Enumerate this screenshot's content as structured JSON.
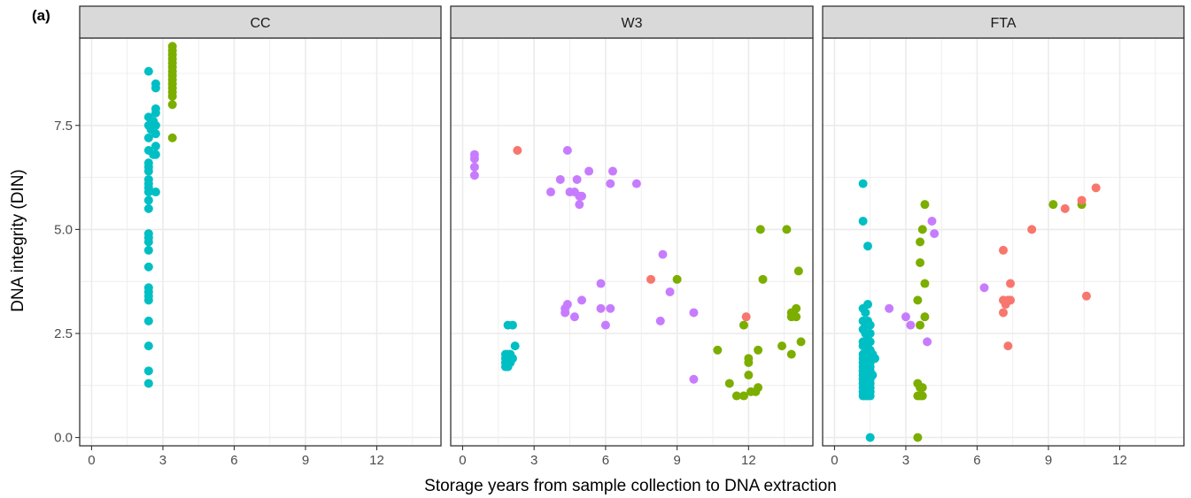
{
  "figure": {
    "panel_label": "(a)",
    "xlabel": "Storage years from sample collection to DNA extraction",
    "ylabel": "DNA integrity (DIN)"
  },
  "colors": {
    "strip_bg": "#d9d9d9",
    "grid": "#ebebeb",
    "axis_text": "#4d4d4d",
    "teal": "#00bfc4",
    "green": "#7cae00",
    "purple": "#c77cff",
    "red": "#f8766d"
  },
  "chart_data": [
    {
      "type": "scatter",
      "facet": "CC",
      "xlim": [
        -0.5,
        14.7
      ],
      "ylim": [
        -0.2,
        9.6
      ],
      "x_ticks": [
        "0",
        "3",
        "6",
        "9",
        "12"
      ],
      "y_ticks": [
        "0.0",
        "2.5",
        "5.0",
        "7.5"
      ],
      "grid": true,
      "series": [
        {
          "color": "teal",
          "points": [
            [
              2.4,
              8.8
            ],
            [
              2.4,
              7.7
            ],
            [
              2.6,
              7.6
            ],
            [
              2.4,
              7.5
            ],
            [
              2.7,
              7.5
            ],
            [
              2.5,
              7.4
            ],
            [
              2.7,
              7.3
            ],
            [
              2.4,
              7.2
            ],
            [
              2.7,
              7.0
            ],
            [
              2.4,
              6.9
            ],
            [
              2.6,
              6.8
            ],
            [
              2.7,
              6.8
            ],
            [
              2.4,
              6.6
            ],
            [
              2.4,
              6.5
            ],
            [
              2.4,
              6.4
            ],
            [
              2.4,
              6.2
            ],
            [
              2.4,
              6.1
            ],
            [
              2.4,
              6.0
            ],
            [
              2.4,
              5.9
            ],
            [
              2.7,
              5.9
            ],
            [
              2.4,
              5.7
            ],
            [
              2.4,
              5.5
            ],
            [
              2.4,
              4.9
            ],
            [
              2.4,
              4.8
            ],
            [
              2.4,
              4.7
            ],
            [
              2.4,
              4.5
            ],
            [
              2.4,
              4.1
            ],
            [
              2.4,
              3.6
            ],
            [
              2.4,
              3.5
            ],
            [
              2.4,
              3.4
            ],
            [
              2.4,
              3.3
            ],
            [
              2.4,
              2.8
            ],
            [
              2.4,
              2.2
            ],
            [
              2.4,
              1.6
            ],
            [
              2.4,
              1.3
            ],
            [
              2.7,
              8.4
            ],
            [
              2.7,
              8.5
            ],
            [
              2.7,
              7.9
            ],
            [
              2.7,
              7.8
            ]
          ]
        },
        {
          "color": "green",
          "points": [
            [
              3.4,
              9.4
            ],
            [
              3.4,
              9.3
            ],
            [
              3.4,
              9.2
            ],
            [
              3.4,
              9.1
            ],
            [
              3.4,
              9.0
            ],
            [
              3.4,
              8.9
            ],
            [
              3.4,
              8.8
            ],
            [
              3.4,
              8.7
            ],
            [
              3.4,
              8.6
            ],
            [
              3.4,
              8.5
            ],
            [
              3.4,
              8.4
            ],
            [
              3.4,
              8.3
            ],
            [
              3.4,
              8.2
            ],
            [
              3.4,
              8.0
            ],
            [
              3.4,
              7.2
            ]
          ]
        }
      ]
    },
    {
      "type": "scatter",
      "facet": "W3",
      "xlim": [
        -0.5,
        14.7
      ],
      "ylim": [
        -0.2,
        9.6
      ],
      "x_ticks": [
        "0",
        "3",
        "6",
        "9",
        "12"
      ],
      "y_ticks": [
        "0.0",
        "2.5",
        "5.0",
        "7.5"
      ],
      "grid": true,
      "series": [
        {
          "color": "purple",
          "points": [
            [
              0.5,
              6.8
            ],
            [
              0.5,
              6.7
            ],
            [
              0.5,
              6.5
            ],
            [
              0.5,
              6.3
            ],
            [
              3.7,
              5.9
            ],
            [
              4.1,
              6.2
            ],
            [
              4.4,
              6.9
            ],
            [
              4.5,
              5.9
            ],
            [
              4.7,
              5.9
            ],
            [
              4.8,
              6.2
            ],
            [
              4.9,
              5.8
            ],
            [
              5.0,
              5.8
            ],
            [
              4.9,
              5.6
            ],
            [
              5.3,
              6.4
            ],
            [
              6.2,
              6.1
            ],
            [
              6.3,
              6.4
            ],
            [
              7.3,
              6.1
            ],
            [
              8.4,
              4.4
            ],
            [
              4.3,
              3.1
            ],
            [
              4.3,
              3.0
            ],
            [
              4.4,
              3.2
            ],
            [
              4.7,
              2.9
            ],
            [
              5.0,
              3.3
            ],
            [
              5.8,
              3.7
            ],
            [
              5.8,
              3.1
            ],
            [
              6.2,
              3.1
            ],
            [
              6.0,
              2.7
            ],
            [
              8.3,
              2.8
            ],
            [
              8.7,
              3.5
            ],
            [
              9.7,
              3.0
            ],
            [
              9.7,
              1.4
            ]
          ]
        },
        {
          "color": "red",
          "points": [
            [
              2.3,
              6.9
            ],
            [
              7.9,
              3.8
            ],
            [
              11.9,
              2.9
            ]
          ]
        },
        {
          "color": "teal",
          "points": [
            [
              1.8,
              2.0
            ],
            [
              1.8,
              1.9
            ],
            [
              1.8,
              1.8
            ],
            [
              1.8,
              1.7
            ],
            [
              1.9,
              1.7
            ],
            [
              1.9,
              2.7
            ],
            [
              2.1,
              2.7
            ],
            [
              2.0,
              2.0
            ],
            [
              2.1,
              1.9
            ],
            [
              2.2,
              2.2
            ],
            [
              2.0,
              1.8
            ],
            [
              1.9,
              2.0
            ]
          ]
        },
        {
          "color": "green",
          "points": [
            [
              9.0,
              3.8
            ],
            [
              10.7,
              2.1
            ],
            [
              11.2,
              1.3
            ],
            [
              11.5,
              1.0
            ],
            [
              11.8,
              1.0
            ],
            [
              11.8,
              2.7
            ],
            [
              12.0,
              1.5
            ],
            [
              12.0,
              1.8
            ],
            [
              12.0,
              1.9
            ],
            [
              12.1,
              1.1
            ],
            [
              12.3,
              1.1
            ],
            [
              12.4,
              1.2
            ],
            [
              12.4,
              2.1
            ],
            [
              12.5,
              5.0
            ],
            [
              12.6,
              3.8
            ],
            [
              13.4,
              2.2
            ],
            [
              13.6,
              5.0
            ],
            [
              13.8,
              2.0
            ],
            [
              13.8,
              2.9
            ],
            [
              13.8,
              3.0
            ],
            [
              14.0,
              3.1
            ],
            [
              14.0,
              2.9
            ],
            [
              14.1,
              4.0
            ],
            [
              14.2,
              2.3
            ]
          ]
        }
      ]
    },
    {
      "type": "scatter",
      "facet": "FTA",
      "xlim": [
        -0.5,
        14.7
      ],
      "ylim": [
        -0.2,
        9.6
      ],
      "x_ticks": [
        "0",
        "3",
        "6",
        "9",
        "12"
      ],
      "y_ticks": [
        "0.0",
        "2.5",
        "5.0",
        "7.5"
      ],
      "grid": true,
      "series": [
        {
          "color": "teal",
          "points": [
            [
              1.2,
              6.1
            ],
            [
              1.2,
              5.2
            ],
            [
              1.4,
              4.6
            ],
            [
              1.5,
              0.0
            ],
            [
              1.2,
              3.1
            ],
            [
              1.3,
              3.0
            ],
            [
              1.4,
              3.2
            ],
            [
              1.2,
              2.8
            ],
            [
              1.3,
              2.7
            ],
            [
              1.4,
              2.8
            ],
            [
              1.5,
              2.7
            ],
            [
              1.2,
              2.6
            ],
            [
              1.3,
              2.5
            ],
            [
              1.4,
              2.5
            ],
            [
              1.5,
              2.5
            ],
            [
              1.2,
              2.3
            ],
            [
              1.3,
              2.3
            ],
            [
              1.4,
              2.3
            ],
            [
              1.5,
              2.3
            ],
            [
              1.2,
              2.2
            ],
            [
              1.3,
              2.2
            ],
            [
              1.4,
              2.1
            ],
            [
              1.5,
              2.1
            ],
            [
              1.2,
              2.0
            ],
            [
              1.3,
              2.0
            ],
            [
              1.4,
              2.0
            ],
            [
              1.5,
              2.0
            ],
            [
              1.2,
              1.9
            ],
            [
              1.3,
              1.9
            ],
            [
              1.4,
              1.9
            ],
            [
              1.5,
              1.9
            ],
            [
              1.2,
              1.8
            ],
            [
              1.3,
              1.8
            ],
            [
              1.4,
              1.8
            ],
            [
              1.5,
              1.8
            ],
            [
              1.2,
              1.7
            ],
            [
              1.3,
              1.7
            ],
            [
              1.4,
              1.7
            ],
            [
              1.5,
              1.7
            ],
            [
              1.2,
              1.6
            ],
            [
              1.3,
              1.6
            ],
            [
              1.4,
              1.6
            ],
            [
              1.5,
              1.6
            ],
            [
              1.2,
              1.5
            ],
            [
              1.3,
              1.5
            ],
            [
              1.4,
              1.5
            ],
            [
              1.5,
              1.5
            ],
            [
              1.2,
              1.4
            ],
            [
              1.3,
              1.4
            ],
            [
              1.4,
              1.4
            ],
            [
              1.5,
              1.4
            ],
            [
              1.2,
              1.3
            ],
            [
              1.3,
              1.3
            ],
            [
              1.4,
              1.3
            ],
            [
              1.5,
              1.3
            ],
            [
              1.2,
              1.2
            ],
            [
              1.3,
              1.2
            ],
            [
              1.4,
              1.2
            ],
            [
              1.5,
              1.2
            ],
            [
              1.2,
              1.1
            ],
            [
              1.3,
              1.1
            ],
            [
              1.4,
              1.1
            ],
            [
              1.5,
              1.1
            ],
            [
              1.2,
              1.0
            ],
            [
              1.3,
              1.0
            ],
            [
              1.4,
              1.0
            ],
            [
              1.5,
              1.0
            ],
            [
              1.7,
              1.9
            ],
            [
              1.6,
              2.0
            ],
            [
              1.6,
              1.5
            ]
          ]
        },
        {
          "color": "purple",
          "points": [
            [
              2.3,
              3.1
            ],
            [
              3.0,
              2.9
            ],
            [
              3.2,
              2.7
            ],
            [
              3.9,
              2.3
            ],
            [
              4.1,
              5.2
            ],
            [
              4.2,
              4.9
            ],
            [
              6.3,
              3.6
            ]
          ]
        },
        {
          "color": "green",
          "points": [
            [
              3.5,
              0.0
            ],
            [
              3.5,
              1.0
            ],
            [
              3.6,
              1.0
            ],
            [
              3.7,
              1.0
            ],
            [
              3.5,
              1.3
            ],
            [
              3.6,
              1.2
            ],
            [
              3.7,
              1.2
            ],
            [
              3.6,
              2.7
            ],
            [
              3.5,
              3.3
            ],
            [
              3.8,
              2.9
            ],
            [
              3.8,
              3.7
            ],
            [
              3.6,
              4.2
            ],
            [
              3.6,
              4.7
            ],
            [
              3.7,
              5.0
            ],
            [
              3.8,
              5.6
            ],
            [
              9.2,
              5.6
            ],
            [
              10.4,
              5.6
            ]
          ]
        },
        {
          "color": "red",
          "points": [
            [
              7.1,
              4.5
            ],
            [
              7.1,
              3.0
            ],
            [
              7.1,
              3.3
            ],
            [
              7.2,
              3.2
            ],
            [
              7.3,
              3.3
            ],
            [
              7.4,
              3.3
            ],
            [
              7.4,
              3.7
            ],
            [
              7.3,
              2.2
            ],
            [
              8.3,
              5.0
            ],
            [
              9.7,
              5.5
            ],
            [
              10.4,
              5.7
            ],
            [
              10.6,
              3.4
            ],
            [
              11.0,
              6.0
            ]
          ]
        }
      ]
    }
  ]
}
